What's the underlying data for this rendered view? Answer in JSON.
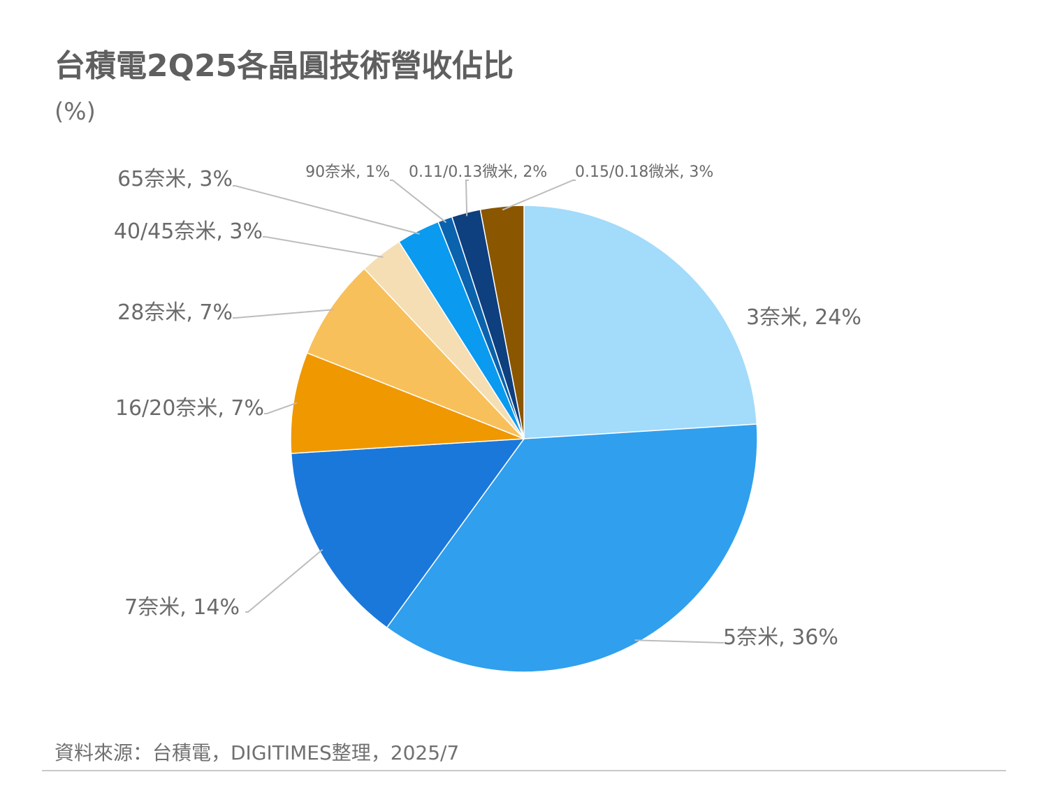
{
  "header": {
    "title": "台積電2Q25各晶圓技術營收佔比",
    "unit": "(%)"
  },
  "footer": {
    "source": "資料來源：台積電，DIGITIMES整理，2025/7"
  },
  "chart_data": {
    "type": "pie",
    "title": "台積電2Q25各晶圓技術營收佔比",
    "unit": "(%)",
    "start_angle_deg": 0,
    "direction": "clockwise",
    "slices": [
      {
        "name": "3奈米",
        "value": 24,
        "label": "3奈米, 24%",
        "color": "#a3dbfa"
      },
      {
        "name": "5奈米",
        "value": 36,
        "label": "5奈米, 36%",
        "color": "#309fed"
      },
      {
        "name": "7奈米",
        "value": 14,
        "label": "7奈米, 14%",
        "color": "#1a78db"
      },
      {
        "name": "16/20奈米",
        "value": 7,
        "label": "16/20奈米, 7%",
        "color": "#f09800"
      },
      {
        "name": "28奈米",
        "value": 7,
        "label": "28奈米, 7%",
        "color": "#f8c05b"
      },
      {
        "name": "40/45奈米",
        "value": 3,
        "label": "40/45奈米, 3%",
        "color": "#f5deb3"
      },
      {
        "name": "65奈米",
        "value": 3,
        "label": "65奈米, 3%",
        "color": "#0a9af0"
      },
      {
        "name": "90奈米",
        "value": 1,
        "label": "90奈米, 1%",
        "color": "#0b62ad"
      },
      {
        "name": "0.11/0.13微米",
        "value": 2,
        "label": "0.11/0.13微米, 2%",
        "color": "#0e3f7e"
      },
      {
        "name": "0.15/0.18微米",
        "value": 3,
        "label": "0.15/0.18微米, 3%",
        "color": "#8b5600"
      }
    ]
  }
}
